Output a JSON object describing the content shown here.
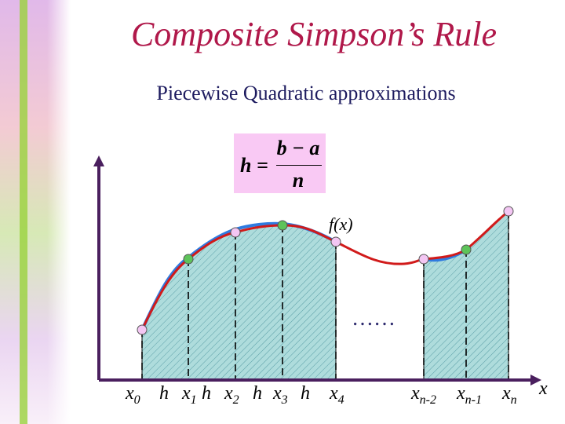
{
  "slide": {
    "title": "Composite Simpson’s Rule",
    "subtitle": "Piecewise Quadratic approximations"
  },
  "formula": {
    "lhs": "h =",
    "numerator": "b − a",
    "denominator": "n"
  },
  "diagram": {
    "function_label": "f(x)",
    "ellipsis": "……",
    "axis_label_x": "x",
    "bottom_labels": [
      {
        "base": "x",
        "sub": "0"
      },
      {
        "base": "h",
        "sub": ""
      },
      {
        "base": "x",
        "sub": "1"
      },
      {
        "base": "h",
        "sub": ""
      },
      {
        "base": "x",
        "sub": "2"
      },
      {
        "base": "h",
        "sub": ""
      },
      {
        "base": "x",
        "sub": "3"
      },
      {
        "base": "h",
        "sub": ""
      },
      {
        "base": "x",
        "sub": "4"
      },
      {
        "base": "x",
        "sub": "n-2"
      },
      {
        "base": "x",
        "sub": "n-1"
      },
      {
        "base": "x",
        "sub": "n"
      }
    ]
  },
  "colors": {
    "title": "#b0184a",
    "subtitle": "#1c1a5e",
    "formula_bg": "#f9c9f4",
    "curve_exact": "#d11a1a",
    "curve_approx": "#2f7be0",
    "hatch_fill": "#aedcdc",
    "axis": "#4a1f5e",
    "node_pink": "#f3c6f3",
    "node_green": "#5ec45a"
  }
}
